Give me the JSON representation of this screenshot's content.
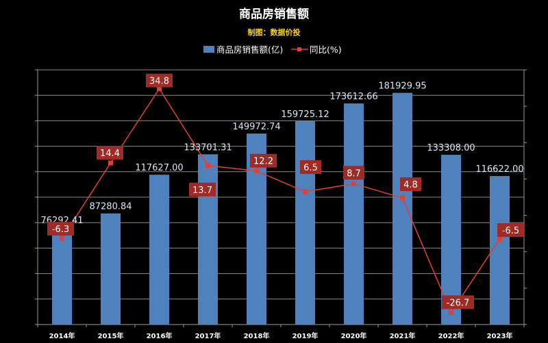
{
  "chart_data": {
    "type": "bar",
    "title": "商品房销售额",
    "subtitle": "制图：数据价投",
    "categories": [
      "2014年",
      "2015年",
      "2016年",
      "2017年",
      "2018年",
      "2019年",
      "2020年",
      "2021年",
      "2022年",
      "2023年"
    ],
    "series": [
      {
        "name": "商品房销售额(亿)",
        "type": "bar",
        "axis": "left",
        "color": "#4f81bd",
        "values": [
          76292.41,
          87280.84,
          117627.0,
          133701.31,
          149972.74,
          159725.12,
          173612.66,
          181929.95,
          133308.0,
          116622.0
        ],
        "labels": [
          "76292.41",
          "87280.84",
          "117627.00",
          "133701.31",
          "149972.74",
          "159725.12",
          "173612.66",
          "181929.95",
          "133308.00",
          "116622.00"
        ]
      },
      {
        "name": "同比(%)",
        "type": "line",
        "axis": "right",
        "color": "#e0403a",
        "values": [
          -6.3,
          14.4,
          34.8,
          13.7,
          12.2,
          6.5,
          8.7,
          4.8,
          -26.7,
          -6.5
        ],
        "labels": [
          "-6.3",
          "14.4",
          "34.8",
          "13.7",
          "12.2",
          "6.5",
          "8.7",
          "4.8",
          "-26.7",
          "-6.5"
        ]
      }
    ],
    "ylim_left": [
      0,
      200000
    ],
    "ylim_right": [
      -30,
      40
    ],
    "grid": true,
    "legend": "top-center"
  }
}
